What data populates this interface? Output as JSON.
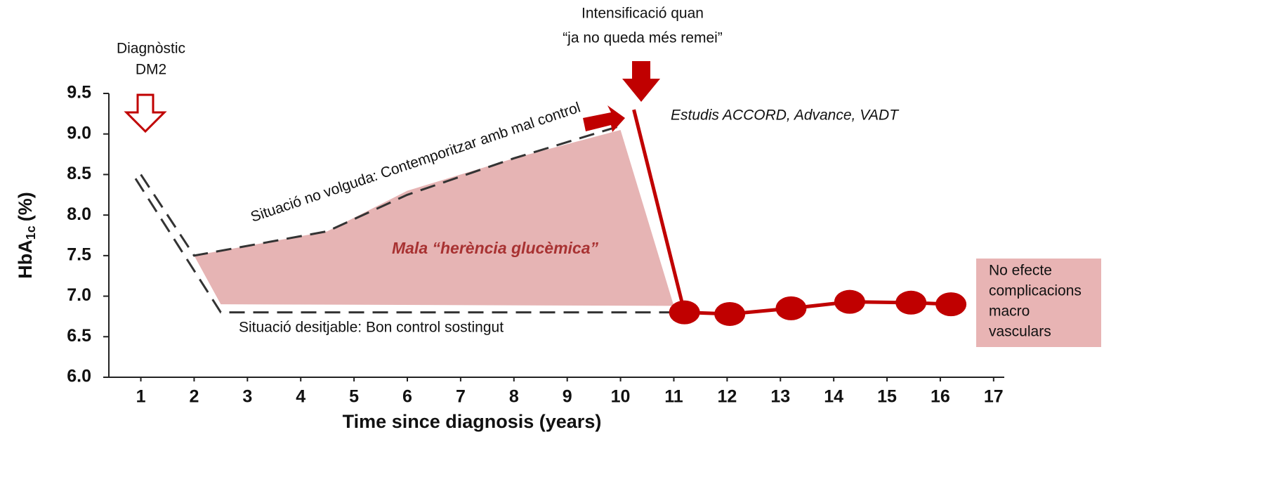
{
  "chart_data": {
    "type": "line",
    "y_label": {
      "main": "HbA",
      "sub": "1c",
      "unit": "(%)"
    },
    "x_label": "Time since diagnosis (years)",
    "xlim": [
      0.4,
      17.2
    ],
    "ylim": [
      6,
      9.5
    ],
    "xticks": [
      1,
      2,
      3,
      4,
      5,
      6,
      7,
      8,
      9,
      10,
      11,
      12,
      13,
      14,
      15,
      16,
      17
    ],
    "yticks": [
      {
        "value": 6,
        "label": "6.0"
      },
      {
        "value": 6.5,
        "label": "6.5"
      },
      {
        "value": 7,
        "label": "7.0"
      },
      {
        "value": 7.5,
        "label": "7.5"
      },
      {
        "value": 8,
        "label": "8.0"
      },
      {
        "value": 8.5,
        "label": "8.5"
      },
      {
        "value": 9,
        "label": "9.0"
      },
      {
        "value": 9.5,
        "label": "9.5"
      }
    ],
    "area": {
      "color": "#e6b4b4",
      "x": [
        2,
        4.5,
        6,
        8,
        10,
        11,
        2.5
      ],
      "values": [
        7.5,
        7.8,
        8.3,
        8.7,
        9.05,
        6.88,
        6.9
      ]
    },
    "series": [
      {
        "color": "#333333",
        "dash": true,
        "markers": false,
        "x": [
          1,
          2,
          4.5,
          6,
          8,
          10
        ],
        "values": [
          8.5,
          7.5,
          7.8,
          8.25,
          8.7,
          9.1
        ]
      },
      {
        "color": "#333333",
        "dash": true,
        "markers": false,
        "x": [
          0.9,
          2.5,
          11
        ],
        "values": [
          8.45,
          6.8,
          6.8
        ]
      },
      {
        "color": "#c00000",
        "dash": false,
        "markers": false,
        "x": [
          10.25,
          11.2
        ],
        "values": [
          9.3,
          6.8
        ]
      },
      {
        "color": "#c00000",
        "dash": false,
        "markers": true,
        "x": [
          11.2,
          12.05,
          13.2,
          14.3,
          15.45,
          16.2
        ],
        "values": [
          6.8,
          6.78,
          6.85,
          6.93,
          6.92,
          6.9
        ]
      }
    ],
    "annotations": {
      "diagnosis": [
        "Diagnòstic",
        "DM2"
      ],
      "intensification": [
        "Intensificació quan",
        "“ja no queda més remei”"
      ],
      "studies": "Estudis ACCORD, Advance, VADT",
      "unwanted": "Situació no volguda: Contemporitzar amb mal control",
      "legacy": "Mala “herència glucèmica”",
      "desired": "Situació desitjable: Bon control sostingut",
      "no_effect": [
        "No efecte",
        "complicacions",
        "macro",
        "vasculars"
      ]
    }
  }
}
